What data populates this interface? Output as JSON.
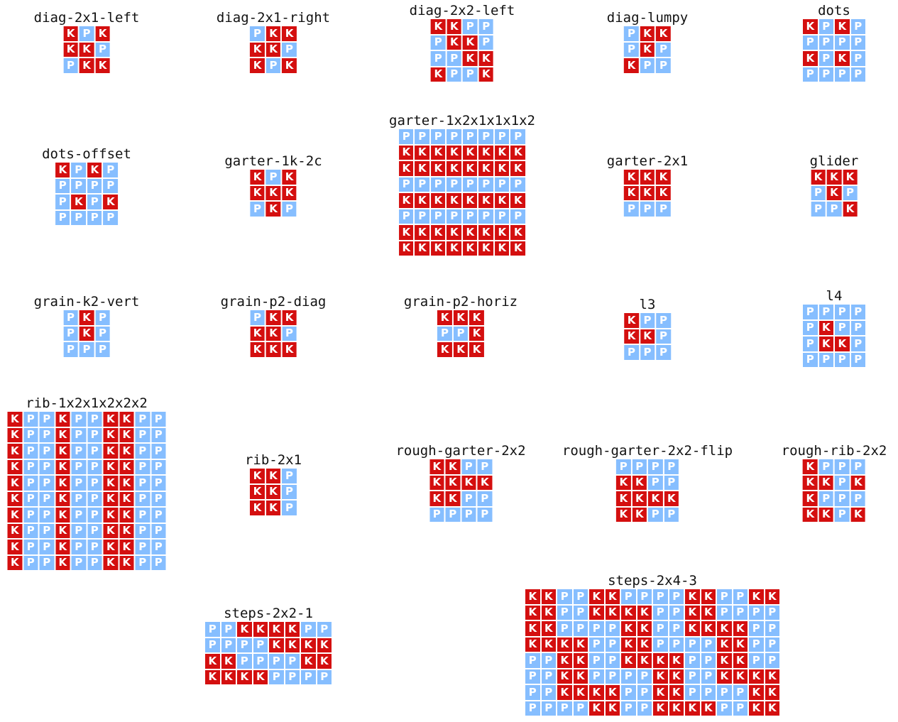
{
  "colors": {
    "knit": "#d40f0f",
    "purl": "#86beff",
    "text": "#ffffff"
  },
  "patterns": [
    {
      "name": "diag-2x1-left",
      "rows": [
        "KPK",
        "KKP",
        "PKK"
      ]
    },
    {
      "name": "diag-2x1-right",
      "rows": [
        "PKK",
        "KKP",
        "KPK"
      ]
    },
    {
      "name": "diag-2x2-left",
      "rows": [
        "KKPP",
        "PKKP",
        "PPKK",
        "KPPK"
      ]
    },
    {
      "name": "diag-lumpy",
      "rows": [
        "PKK",
        "PKP",
        "KPP"
      ]
    },
    {
      "name": "dots",
      "rows": [
        "KPKP",
        "PPPP",
        "KPKP",
        "PPPP"
      ]
    },
    {
      "name": "dots-offset",
      "rows": [
        "KPKP",
        "PPPP",
        "PKPK",
        "PPPP"
      ]
    },
    {
      "name": "garter-1k-2c",
      "rows": [
        "KPK",
        "KKK",
        "PKP"
      ]
    },
    {
      "name": "garter-1x2x1x1x1x2",
      "rows": [
        "PPPPPPPP",
        "KKKKKKKK",
        "KKKKKKKK",
        "PPPPPPPP",
        "KKKKKKKK",
        "PPPPPPPP",
        "KKKKKKKK",
        "KKKKKKKK"
      ]
    },
    {
      "name": "garter-2x1",
      "rows": [
        "KKK",
        "KKK",
        "PPP"
      ]
    },
    {
      "name": "glider",
      "rows": [
        "KKK",
        "PKP",
        "PPK"
      ]
    },
    {
      "name": "grain-k2-vert",
      "rows": [
        "PKP",
        "PKP",
        "PPP"
      ]
    },
    {
      "name": "grain-p2-diag",
      "rows": [
        "PKK",
        "KKP",
        "KKK"
      ]
    },
    {
      "name": "grain-p2-horiz",
      "rows": [
        "KKK",
        "PPK",
        "KKK"
      ]
    },
    {
      "name": "l3",
      "rows": [
        "KPP",
        "KKP",
        "PPP"
      ]
    },
    {
      "name": "l4",
      "rows": [
        "PPPP",
        "PKPP",
        "PKKP",
        "PPPP"
      ]
    },
    {
      "name": "rib-1x2x1x2x2x2",
      "rows": [
        "KPPKPPKKPP",
        "KPPKPPKKPP",
        "KPPKPPKKPP",
        "KPPKPPKKPP",
        "KPPKPPKKPP",
        "KPPKPPKKPP",
        "KPPKPPKKPP",
        "KPPKPPKKPP",
        "KPPKPPKKPP",
        "KPPKPPKKPP"
      ]
    },
    {
      "name": "rib-2x1",
      "rows": [
        "KKP",
        "KKP",
        "KKP"
      ]
    },
    {
      "name": "rough-garter-2x2",
      "rows": [
        "KKPP",
        "KKKK",
        "KKPP",
        "PPPP"
      ]
    },
    {
      "name": "rough-garter-2x2-flip",
      "rows": [
        "PPPP",
        "KKPP",
        "KKKK",
        "KKPP"
      ]
    },
    {
      "name": "rough-rib-2x2",
      "rows": [
        "KPPP",
        "KKPK",
        "KPPP",
        "KKPK"
      ]
    },
    {
      "name": "steps-2x2-1",
      "rows": [
        "PPKKKKPP",
        "PPPPKKKK",
        "KKPPPPKK",
        "KKKKPPPP"
      ]
    },
    {
      "name": "steps-2x4-3",
      "rows": [
        "KKPPKKPPPPKKPPKK",
        "KKPPKKKKPPKKPPPP",
        "KKPPPPKKPPKKKKPP",
        "KKKKPPKKPPPPKKPP",
        "PPKKPPKKKKPPKKPP",
        "PPKKPPPPKKPPKKKK",
        "PPKKKKPPKKPPPPKK",
        "PPPPKKPPKKKKPPKK"
      ]
    }
  ]
}
